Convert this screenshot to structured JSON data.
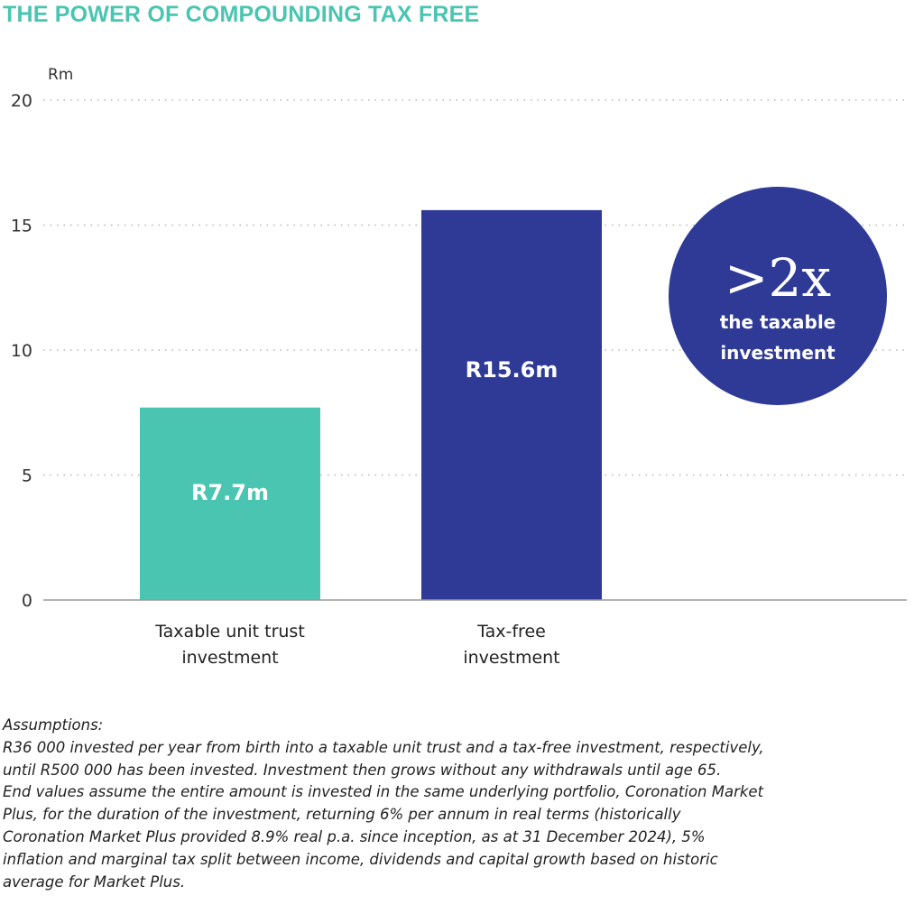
{
  "title": "THE POWER OF COMPOUNDING TAX FREE",
  "chart_data": {
    "type": "bar",
    "y_unit": "Rm",
    "ylim": [
      0,
      20
    ],
    "yticks": [
      0,
      5,
      10,
      15,
      20
    ],
    "grid": "dotted horizontal",
    "categories": [
      [
        "Taxable unit trust",
        "investment"
      ],
      [
        "Tax-free",
        "investment"
      ]
    ],
    "values": [
      7.7,
      15.6
    ],
    "data_labels": [
      "R7.7m",
      "R15.6m"
    ],
    "colors": [
      "#49c5b1",
      "#2e3a96"
    ],
    "annotation": {
      "headline": ">2x",
      "lines": [
        "the taxable",
        "investment"
      ],
      "color": "#2e3a96"
    }
  },
  "notes": {
    "heading": "Assumptions:",
    "lines": [
      "R36 000 invested per year from birth into a taxable unit trust and a tax-free investment, respectively,",
      "until R500 000 has been invested. Investment then grows without any withdrawals until age 65.",
      "End values assume the entire amount is invested in the same underlying portfolio, Coronation Market",
      "Plus, for the duration of the investment, returning 6% per annum in real terms (historically",
      "Coronation Market Plus provided 8.9% real p.a. since inception, as at 31 December 2024), 5%",
      "inflation and marginal tax split between income, dividends and capital growth based on historic",
      "average for Market Plus."
    ]
  }
}
